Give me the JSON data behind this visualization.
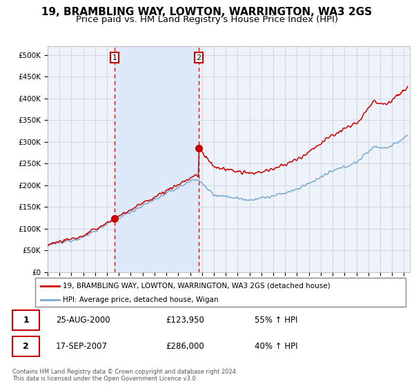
{
  "title": "19, BRAMBLING WAY, LOWTON, WARRINGTON, WA3 2GS",
  "subtitle": "Price paid vs. HM Land Registry's House Price Index (HPI)",
  "xlim_start": 1995.0,
  "xlim_end": 2025.5,
  "ylim": [
    0,
    520000
  ],
  "yticks": [
    0,
    50000,
    100000,
    150000,
    200000,
    250000,
    300000,
    350000,
    400000,
    450000,
    500000
  ],
  "ytick_labels": [
    "£0",
    "£50K",
    "£100K",
    "£150K",
    "£200K",
    "£250K",
    "£300K",
    "£350K",
    "£400K",
    "£450K",
    "£500K"
  ],
  "xticks": [
    1995,
    1996,
    1997,
    1998,
    1999,
    2000,
    2001,
    2002,
    2003,
    2004,
    2005,
    2006,
    2007,
    2008,
    2009,
    2010,
    2011,
    2012,
    2013,
    2014,
    2015,
    2016,
    2017,
    2018,
    2019,
    2020,
    2021,
    2022,
    2023,
    2024,
    2025
  ],
  "plot_bg_color": "#eef2f9",
  "grid_color": "#d0d8e8",
  "shade_color": "#dde8f8",
  "red_line_color": "#cc0000",
  "blue_line_color": "#7aaad0",
  "purchase1_x": 2000.647,
  "purchase1_y": 123950,
  "purchase2_x": 2007.714,
  "purchase2_y": 286000,
  "legend_label_red": "19, BRAMBLING WAY, LOWTON, WARRINGTON, WA3 2GS (detached house)",
  "legend_label_blue": "HPI: Average price, detached house, Wigan",
  "table_data": [
    [
      "1",
      "25-AUG-2000",
      "£123,950",
      "55% ↑ HPI"
    ],
    [
      "2",
      "17-SEP-2007",
      "£286,000",
      "40% ↑ HPI"
    ]
  ],
  "footer": "Contains HM Land Registry data © Crown copyright and database right 2024.\nThis data is licensed under the Open Government Licence v3.0.",
  "title_fontsize": 11,
  "subtitle_fontsize": 9.5
}
